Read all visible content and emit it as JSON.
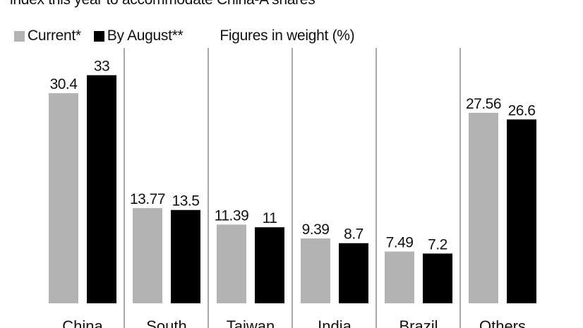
{
  "subtitle": "index this year to accommodate China-A shares",
  "legend": {
    "current_label": "Current*",
    "august_label": "By August**",
    "note": "Figures in weight (%)"
  },
  "colors": {
    "current": "#b3b3b3",
    "august": "#000000",
    "divider": "#6f6f6f"
  },
  "chart_data": {
    "type": "bar",
    "title": "",
    "xlabel": "",
    "ylabel": "Figures in weight (%)",
    "ylim": [
      0,
      36
    ],
    "categories": [
      "China",
      "South",
      "Taiwan",
      "India",
      "Brazil",
      "Others"
    ],
    "series": [
      {
        "name": "Current*",
        "values": [
          30.4,
          13.77,
          11.39,
          9.39,
          7.49,
          27.56
        ],
        "labels": [
          "30.4",
          "13.77",
          "11.39",
          "9.39",
          "7.49",
          "27.56"
        ]
      },
      {
        "name": "By August**",
        "values": [
          33,
          13.5,
          11,
          8.7,
          7.2,
          26.6
        ],
        "labels": [
          "33",
          "13.5",
          "11",
          "8.7",
          "7.2",
          "26.6"
        ]
      }
    ],
    "grid": false,
    "legend_position": "top-left"
  }
}
